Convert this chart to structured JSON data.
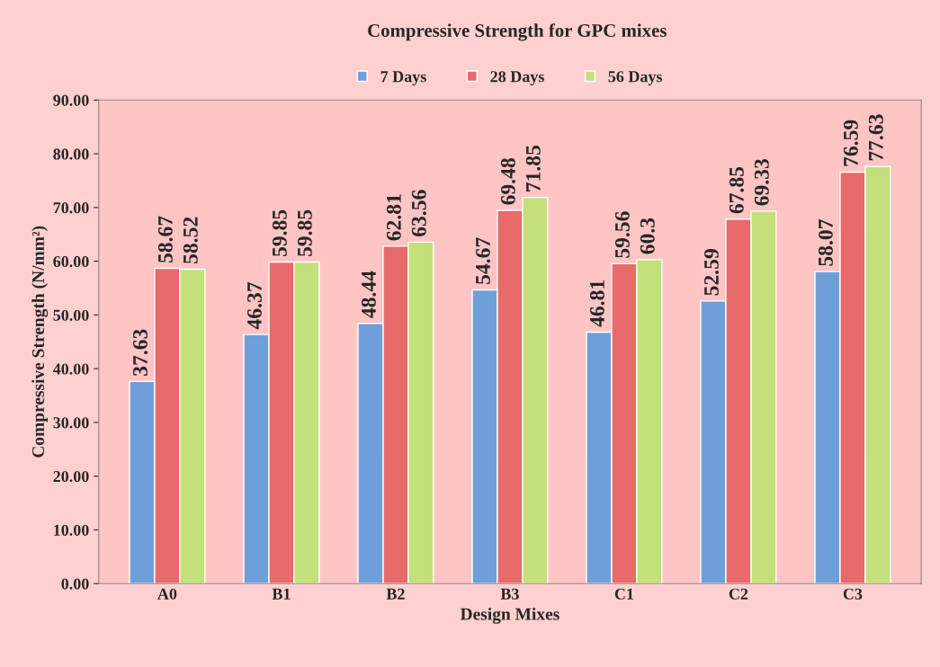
{
  "chart_data": {
    "type": "bar",
    "title": "Compressive Strength for GPC mixes",
    "xlabel": "Design Mixes",
    "ylabel": "Compressive Strength (N/mm²)",
    "categories": [
      "A0",
      "B1",
      "B2",
      "B3",
      "C1",
      "C2",
      "C3"
    ],
    "series": [
      {
        "name": "7 Days",
        "color": "#6f9fd8",
        "values": [
          37.63,
          46.37,
          48.44,
          54.67,
          46.81,
          52.59,
          58.07
        ]
      },
      {
        "name": "28 Days",
        "color": "#e86a6a",
        "values": [
          58.67,
          59.85,
          62.81,
          69.48,
          59.56,
          67.85,
          76.59
        ]
      },
      {
        "name": "56 Days",
        "color": "#c4e07a",
        "values": [
          58.52,
          59.85,
          63.56,
          71.85,
          60.3,
          69.33,
          77.63
        ]
      }
    ],
    "ylim": [
      0,
      90
    ],
    "yticks": [
      {
        "value": 0,
        "label": "0.00"
      },
      {
        "value": 10,
        "label": "10.00"
      },
      {
        "value": 20,
        "label": "20.00"
      },
      {
        "value": 30,
        "label": "30.00"
      },
      {
        "value": 40,
        "label": "40.00"
      },
      {
        "value": 50,
        "label": "50.00"
      },
      {
        "value": 60,
        "label": "60.00"
      },
      {
        "value": 70,
        "label": "70.00"
      },
      {
        "value": 80,
        "label": "80.00"
      },
      {
        "value": 90,
        "label": "90.00"
      }
    ],
    "grid": false,
    "legend": "top",
    "data_labels": true
  }
}
